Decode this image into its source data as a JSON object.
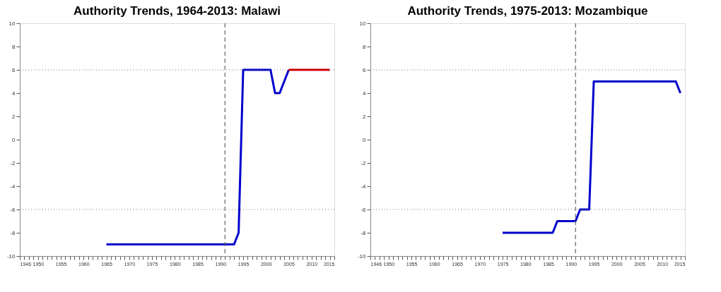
{
  "chart_data": [
    {
      "type": "line",
      "title": "Authority Trends, 1964-2013: Malawi",
      "series": [
        {
          "color": "#0000cc",
          "x": [
            1965,
            1993,
            1994,
            1995,
            2001,
            2002,
            2003,
            2005
          ],
          "values": [
            -9,
            -9,
            -8,
            6,
            6,
            4,
            4,
            6
          ]
        },
        {
          "color": "#cc0000",
          "x": [
            2005,
            2014
          ],
          "values": [
            6,
            6
          ]
        }
      ],
      "xlim": [
        1946,
        2015
      ],
      "ylim": [
        -10,
        10
      ],
      "yticks": [
        -10,
        -8,
        -6,
        -4,
        -2,
        0,
        2,
        4,
        6,
        8,
        10
      ],
      "xticks": [
        1946,
        {
          "value": 1947,
          "label": null
        },
        {
          "value": 1948,
          "label": null
        },
        {
          "value": 1949,
          "label": null
        },
        1950,
        {
          "value": 1951,
          "label": null
        },
        {
          "value": 1952,
          "label": null
        },
        {
          "value": 1953,
          "label": null
        },
        {
          "value": 1954,
          "label": null
        },
        1955,
        {
          "value": 1956,
          "label": null
        },
        {
          "value": 1957,
          "label": null
        },
        {
          "value": 1958,
          "label": null
        },
        {
          "value": 1959,
          "label": null
        },
        1960,
        {
          "value": 1961,
          "label": null
        },
        {
          "value": 1962,
          "label": null
        },
        {
          "value": 1963,
          "label": null
        },
        {
          "value": 1964,
          "label": null
        },
        1965,
        {
          "value": 1966,
          "label": null
        },
        {
          "value": 1967,
          "label": null
        },
        {
          "value": 1968,
          "label": null
        },
        {
          "value": 1969,
          "label": null
        },
        1970,
        {
          "value": 1971,
          "label": null
        },
        {
          "value": 1972,
          "label": null
        },
        {
          "value": 1973,
          "label": null
        },
        {
          "value": 1974,
          "label": null
        },
        1975,
        {
          "value": 1976,
          "label": null
        },
        {
          "value": 1977,
          "label": null
        },
        {
          "value": 1978,
          "label": null
        },
        {
          "value": 1979,
          "label": null
        },
        1980,
        {
          "value": 1981,
          "label": null
        },
        {
          "value": 1982,
          "label": null
        },
        {
          "value": 1983,
          "label": null
        },
        {
          "value": 1984,
          "label": null
        },
        1985,
        {
          "value": 1986,
          "label": null
        },
        {
          "value": 1987,
          "label": null
        },
        {
          "value": 1988,
          "label": null
        },
        {
          "value": 1989,
          "label": null
        },
        1990,
        {
          "value": 1991,
          "label": null
        },
        {
          "value": 1992,
          "label": null
        },
        {
          "value": 1993,
          "label": null
        },
        {
          "value": 1994,
          "label": null
        },
        1995,
        {
          "value": 1996,
          "label": null
        },
        {
          "value": 1997,
          "label": null
        },
        {
          "value": 1998,
          "label": null
        },
        {
          "value": 1999,
          "label": null
        },
        2000,
        {
          "value": 2001,
          "label": null
        },
        {
          "value": 2002,
          "label": null
        },
        {
          "value": 2003,
          "label": null
        },
        {
          "value": 2004,
          "label": null
        },
        2005,
        {
          "value": 2006,
          "label": null
        },
        {
          "value": 2007,
          "label": null
        },
        {
          "value": 2008,
          "label": null
        },
        {
          "value": 2009,
          "label": null
        },
        2010,
        {
          "value": 2011,
          "label": null
        },
        {
          "value": 2012,
          "label": null
        },
        {
          "value": 2013,
          "label": null
        },
        {
          "value": 2014,
          "label": null
        },
        2015
      ],
      "ref_lines": [
        {
          "axis": "x",
          "value": 1991,
          "color": "#666666",
          "line_style": "dashed"
        },
        {
          "axis": "y",
          "value": 6,
          "color": "#777777",
          "line_style": "dotted"
        },
        {
          "axis": "y",
          "value": -6,
          "color": "#777777",
          "line_style": "dotted"
        }
      ],
      "grid": false
    },
    {
      "type": "line",
      "title": "Authority Trends, 1975-2013: Mozambique",
      "series": [
        {
          "color": "#0000cc",
          "x": [
            1975,
            1986,
            1987,
            1991,
            1992,
            1994,
            1995,
            2013,
            2014
          ],
          "values": [
            -8,
            -8,
            -7,
            -7,
            -6,
            -6,
            5,
            5,
            4
          ]
        }
      ],
      "xlim": [
        1946,
        2015
      ],
      "ylim": [
        -10,
        10
      ],
      "yticks": [
        -10,
        -8,
        -6,
        -4,
        -2,
        0,
        2,
        4,
        6,
        8,
        10
      ],
      "xticks": [
        1946,
        {
          "value": 1947,
          "label": null
        },
        {
          "value": 1948,
          "label": null
        },
        {
          "value": 1949,
          "label": null
        },
        1950,
        {
          "value": 1951,
          "label": null
        },
        {
          "value": 1952,
          "label": null
        },
        {
          "value": 1953,
          "label": null
        },
        {
          "value": 1954,
          "label": null
        },
        1955,
        {
          "value": 1956,
          "label": null
        },
        {
          "value": 1957,
          "label": null
        },
        {
          "value": 1958,
          "label": null
        },
        {
          "value": 1959,
          "label": null
        },
        1960,
        {
          "value": 1961,
          "label": null
        },
        {
          "value": 1962,
          "label": null
        },
        {
          "value": 1963,
          "label": null
        },
        {
          "value": 1964,
          "label": null
        },
        1965,
        {
          "value": 1966,
          "label": null
        },
        {
          "value": 1967,
          "label": null
        },
        {
          "value": 1968,
          "label": null
        },
        {
          "value": 1969,
          "label": null
        },
        1970,
        {
          "value": 1971,
          "label": null
        },
        {
          "value": 1972,
          "label": null
        },
        {
          "value": 1973,
          "label": null
        },
        {
          "value": 1974,
          "label": null
        },
        1975,
        {
          "value": 1976,
          "label": null
        },
        {
          "value": 1977,
          "label": null
        },
        {
          "value": 1978,
          "label": null
        },
        {
          "value": 1979,
          "label": null
        },
        1980,
        {
          "value": 1981,
          "label": null
        },
        {
          "value": 1982,
          "label": null
        },
        {
          "value": 1983,
          "label": null
        },
        {
          "value": 1984,
          "label": null
        },
        1985,
        {
          "value": 1986,
          "label": null
        },
        {
          "value": 1987,
          "label": null
        },
        {
          "value": 1988,
          "label": null
        },
        {
          "value": 1989,
          "label": null
        },
        1990,
        {
          "value": 1991,
          "label": null
        },
        {
          "value": 1992,
          "label": null
        },
        {
          "value": 1993,
          "label": null
        },
        {
          "value": 1994,
          "label": null
        },
        1995,
        {
          "value": 1996,
          "label": null
        },
        {
          "value": 1997,
          "label": null
        },
        {
          "value": 1998,
          "label": null
        },
        {
          "value": 1999,
          "label": null
        },
        2000,
        {
          "value": 2001,
          "label": null
        },
        {
          "value": 2002,
          "label": null
        },
        {
          "value": 2003,
          "label": null
        },
        {
          "value": 2004,
          "label": null
        },
        2005,
        {
          "value": 2006,
          "label": null
        },
        {
          "value": 2007,
          "label": null
        },
        {
          "value": 2008,
          "label": null
        },
        {
          "value": 2009,
          "label": null
        },
        2010,
        {
          "value": 2011,
          "label": null
        },
        {
          "value": 2012,
          "label": null
        },
        {
          "value": 2013,
          "label": null
        },
        {
          "value": 2014,
          "label": null
        },
        2015
      ],
      "ref_lines": [
        {
          "axis": "x",
          "value": 1991,
          "color": "#666666",
          "line_style": "dashed"
        },
        {
          "axis": "y",
          "value": 6,
          "color": "#777777",
          "line_style": "dotted"
        },
        {
          "axis": "y",
          "value": -6,
          "color": "#777777",
          "line_style": "dotted"
        }
      ],
      "grid": false
    }
  ]
}
